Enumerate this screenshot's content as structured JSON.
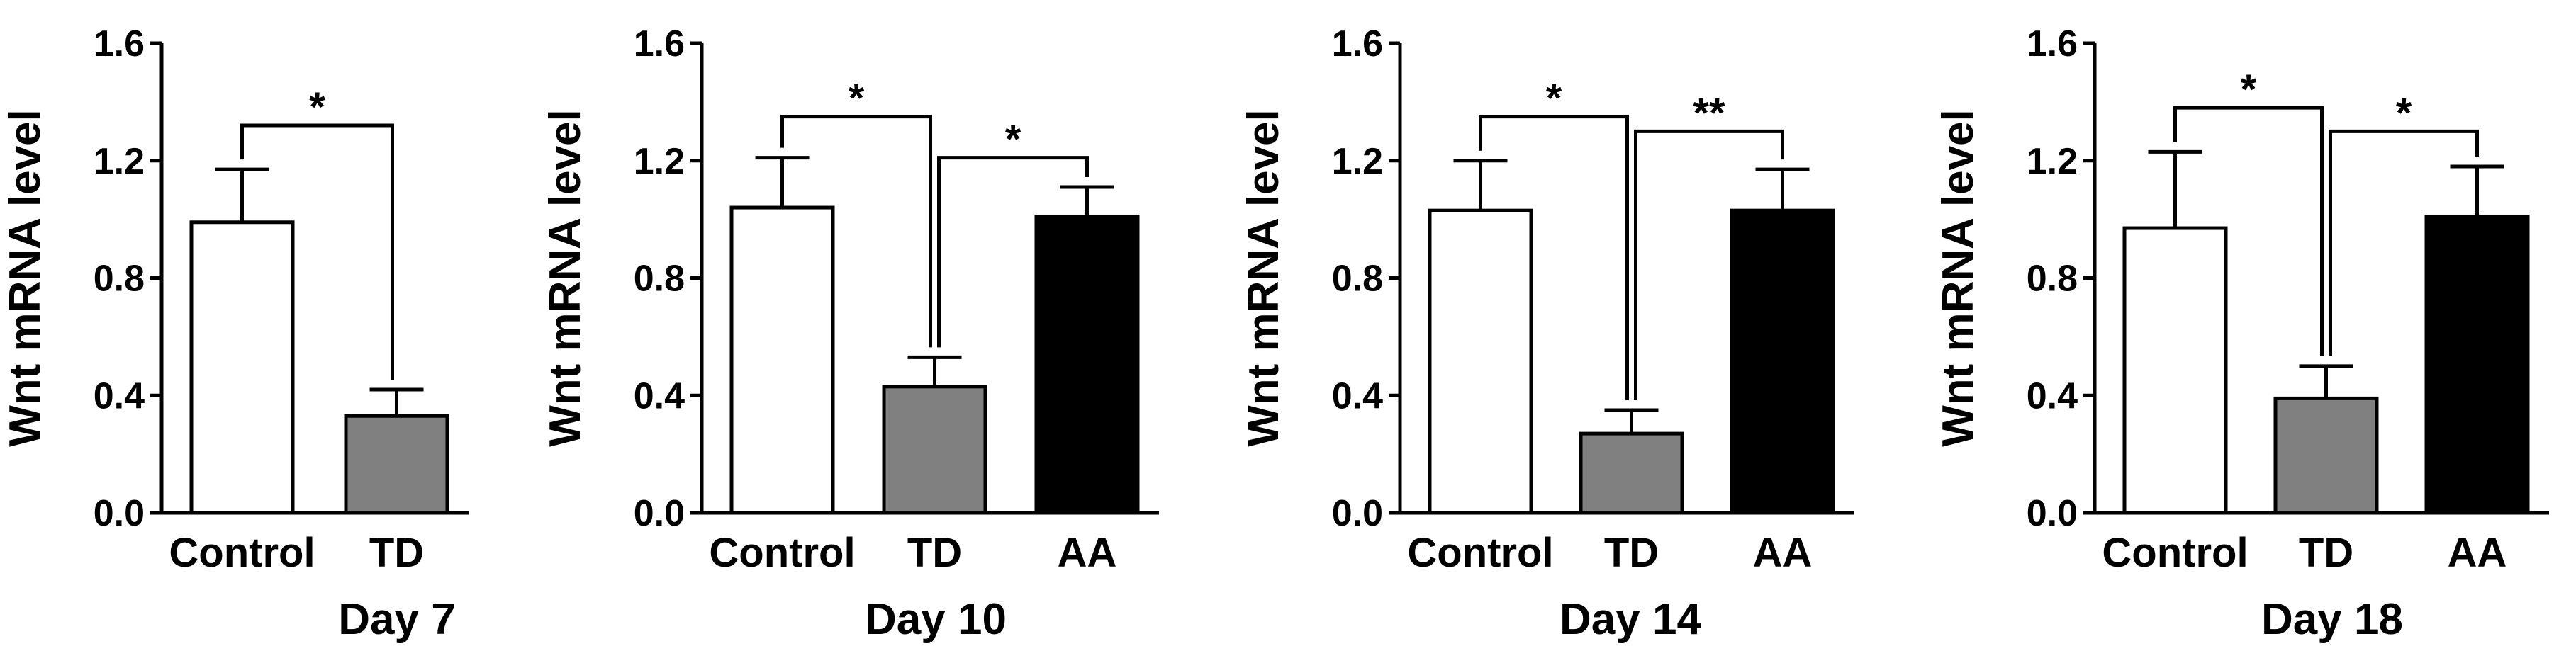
{
  "chart_data": [
    {
      "type": "bar",
      "title": "Day 7",
      "ylabel": "Wnt mRNA level",
      "ylim": [
        0,
        1.6
      ],
      "yticks": [
        "0.0",
        "0.4",
        "0.8",
        "1.2",
        "1.6"
      ],
      "categories": [
        "Control",
        "TD"
      ],
      "values": [
        0.99,
        0.33
      ],
      "errors": [
        0.18,
        0.09
      ],
      "colors": [
        "#ffffff",
        "#808080"
      ],
      "significance": [
        {
          "from": 0,
          "to": 1,
          "label": "*",
          "level": 1.32
        }
      ]
    },
    {
      "type": "bar",
      "title": "Day 10",
      "ylabel": "Wnt mRNA level",
      "ylim": [
        0,
        1.6
      ],
      "yticks": [
        "0.0",
        "0.4",
        "0.8",
        "1.2",
        "1.6"
      ],
      "categories": [
        "Control",
        "TD",
        "AA"
      ],
      "values": [
        1.04,
        0.43,
        1.01
      ],
      "errors": [
        0.17,
        0.1,
        0.1
      ],
      "colors": [
        "#ffffff",
        "#808080",
        "#000000"
      ],
      "significance": [
        {
          "from": 0,
          "to": 1,
          "label": "*",
          "level": 1.35
        },
        {
          "from": 1,
          "to": 2,
          "label": "*",
          "level": 1.21
        }
      ]
    },
    {
      "type": "bar",
      "title": "Day 14",
      "ylabel": "Wnt mRNA level",
      "ylim": [
        0,
        1.6
      ],
      "yticks": [
        "0.0",
        "0.4",
        "0.8",
        "1.2",
        "1.6"
      ],
      "categories": [
        "Control",
        "TD",
        "AA"
      ],
      "values": [
        1.03,
        0.27,
        1.03
      ],
      "errors": [
        0.17,
        0.08,
        0.14
      ],
      "colors": [
        "#ffffff",
        "#808080",
        "#000000"
      ],
      "significance": [
        {
          "from": 0,
          "to": 1,
          "label": "*",
          "level": 1.35
        },
        {
          "from": 1,
          "to": 2,
          "label": "**",
          "level": 1.3
        }
      ]
    },
    {
      "type": "bar",
      "title": "Day 18",
      "ylabel": "Wnt mRNA level",
      "ylim": [
        0,
        1.6
      ],
      "yticks": [
        "0.0",
        "0.4",
        "0.8",
        "1.2",
        "1.6"
      ],
      "categories": [
        "Control",
        "TD",
        "AA"
      ],
      "values": [
        0.97,
        0.39,
        1.01
      ],
      "errors": [
        0.26,
        0.11,
        0.17
      ],
      "colors": [
        "#ffffff",
        "#808080",
        "#000000"
      ],
      "significance": [
        {
          "from": 0,
          "to": 1,
          "label": "*",
          "level": 1.38
        },
        {
          "from": 1,
          "to": 2,
          "label": "*",
          "level": 1.3
        }
      ]
    }
  ]
}
